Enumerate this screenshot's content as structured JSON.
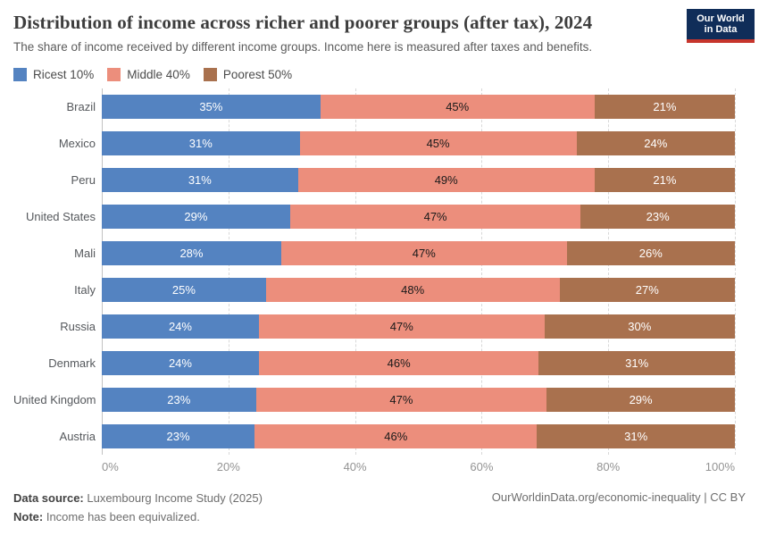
{
  "header": {
    "title": "Distribution of income across richer and poorer groups (after tax), 2024",
    "subtitle": "The share of income received by different income groups. Income here is measured after taxes and benefits.",
    "logo": {
      "line1": "Our World",
      "line2": "in Data",
      "bg_color": "#102d59",
      "accent_color": "#c7352c"
    }
  },
  "chart_data": {
    "type": "bar",
    "orientation": "horizontal",
    "stacked": true,
    "normalized_to_100": true,
    "categories": [
      "Brazil",
      "Mexico",
      "Peru",
      "United States",
      "Mali",
      "Italy",
      "Russia",
      "Denmark",
      "United Kingdom",
      "Austria"
    ],
    "series": [
      {
        "name": "Ricest 10%",
        "color": "#5483c1",
        "label_color": "#ffffff",
        "values": [
          35,
          31,
          31,
          29,
          28,
          25,
          24,
          24,
          23,
          23
        ]
      },
      {
        "name": "Middle 40%",
        "color": "#ec8e7c",
        "label_color": "#1a1a1a",
        "values": [
          45,
          45,
          49,
          47,
          47,
          48,
          47,
          46,
          47,
          46
        ]
      },
      {
        "name": "Poorest 50%",
        "color": "#a9714e",
        "label_color": "#ffffff",
        "values": [
          21,
          24,
          21,
          23,
          26,
          27,
          30,
          31,
          29,
          31
        ]
      }
    ],
    "value_suffix": "%",
    "x_ticks": [
      "0%",
      "20%",
      "40%",
      "60%",
      "80%",
      "100%"
    ],
    "xlim": [
      0,
      100
    ],
    "grid": "dashed-vertical",
    "legend_position": "top-left"
  },
  "footer": {
    "source_label": "Data source:",
    "source_text": " Luxembourg Income Study (2025)",
    "note_label": "Note:",
    "note_text": " Income has been equivalized.",
    "attribution": "OurWorldinData.org/economic-inequality | CC BY"
  }
}
